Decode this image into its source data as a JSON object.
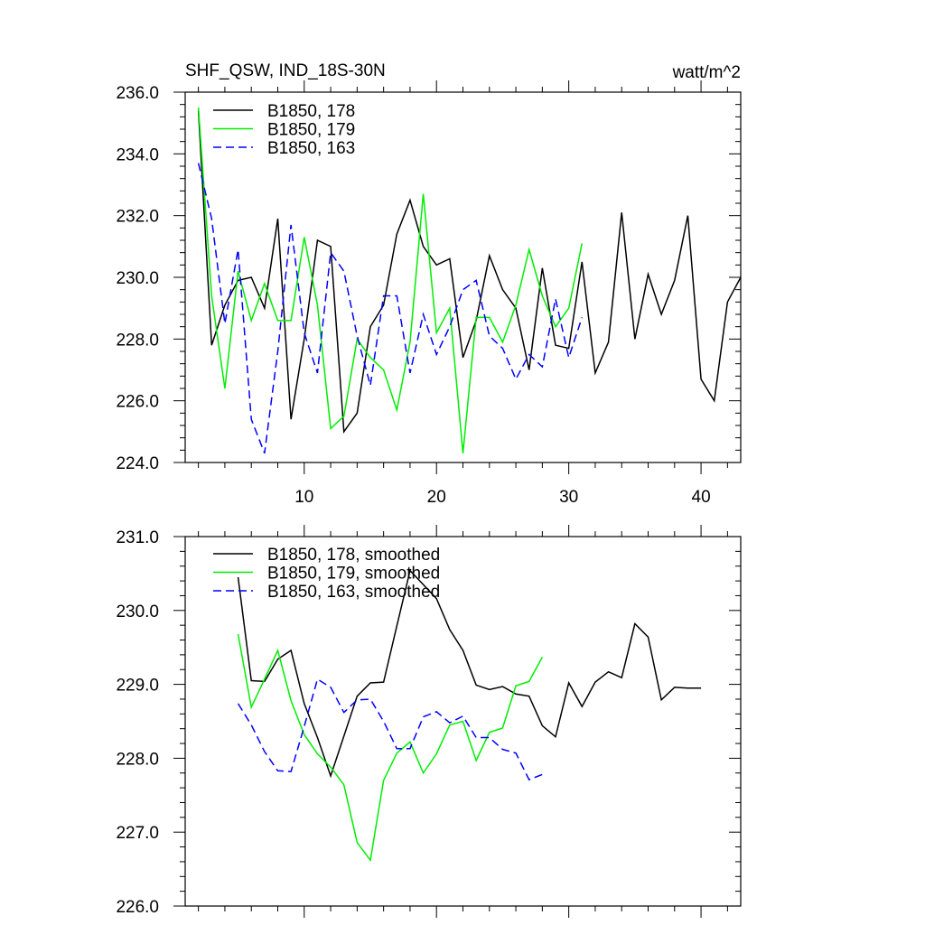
{
  "header": {
    "title": "SHF_QSW, IND_18S-30N",
    "units": "watt/m^2"
  },
  "colors": {
    "series_178": "#000000",
    "series_179": "#00ee00",
    "series_163": "#0000ff",
    "axis": "#000000",
    "background": "#ffffff"
  },
  "chart_data": [
    {
      "type": "line",
      "title": "SHF_QSW, IND_18S-30N",
      "units": "watt/m^2",
      "xlabel": "",
      "ylabel": "",
      "xlim": [
        1,
        43
      ],
      "ylim": [
        224.0,
        236.0
      ],
      "xticks": [
        10,
        20,
        30,
        40
      ],
      "xtick_labels": [
        "10",
        "20",
        "30",
        "40"
      ],
      "yticks": [
        224,
        226,
        228,
        230,
        232,
        234,
        236
      ],
      "ytick_labels": [
        "224.0",
        "226.0",
        "228.0",
        "230.0",
        "232.0",
        "234.0",
        "236.0"
      ],
      "legend_position": "top-left",
      "series": [
        {
          "name": "B1850, 178",
          "color": "#000000",
          "dash": "solid",
          "x": [
            2,
            3,
            4,
            5,
            6,
            7,
            8,
            9,
            10,
            11,
            12,
            13,
            14,
            15,
            16,
            17,
            18,
            19,
            20,
            21,
            22,
            23,
            24,
            25,
            26,
            27,
            28,
            29,
            30,
            31,
            32,
            33,
            34,
            35,
            36,
            37,
            38,
            39,
            40,
            41,
            42,
            43
          ],
          "values": [
            235.4,
            227.8,
            229.1,
            229.9,
            230.0,
            229.0,
            231.9,
            225.4,
            228.0,
            231.2,
            231.0,
            225.0,
            225.6,
            228.4,
            229.1,
            231.4,
            232.5,
            231.0,
            230.4,
            230.6,
            227.4,
            228.6,
            230.7,
            229.6,
            229.0,
            227.0,
            230.3,
            227.8,
            227.7,
            230.5,
            226.9,
            227.9,
            232.1,
            228.0,
            230.1,
            228.8,
            229.9,
            232.0,
            226.7,
            226.0,
            229.2,
            230.0
          ]
        },
        {
          "name": "B1850, 179",
          "color": "#00ee00",
          "dash": "solid",
          "x": [
            2,
            3,
            4,
            5,
            6,
            7,
            8,
            9,
            10,
            11,
            12,
            13,
            14,
            15,
            16,
            17,
            18,
            19,
            20,
            21,
            22,
            23,
            24,
            25,
            26,
            27,
            28,
            29,
            30,
            31
          ],
          "values": [
            235.5,
            229.4,
            226.4,
            230.2,
            228.6,
            229.8,
            228.6,
            228.6,
            231.3,
            229.1,
            225.1,
            225.5,
            228.0,
            227.4,
            227.0,
            225.7,
            227.9,
            232.7,
            228.2,
            229.0,
            224.3,
            228.7,
            228.7,
            227.9,
            229.1,
            230.9,
            229.4,
            228.4,
            229.0,
            231.1
          ]
        },
        {
          "name": "B1850, 163",
          "color": "#0000ff",
          "dash": "dashed",
          "x": [
            2,
            3,
            4,
            5,
            6,
            7,
            8,
            9,
            10,
            11,
            12,
            13,
            14,
            15,
            16,
            17,
            18,
            19,
            20,
            21,
            22,
            23,
            24,
            25,
            26,
            27,
            28,
            29,
            30,
            31
          ],
          "values": [
            233.7,
            231.9,
            228.5,
            230.9,
            225.4,
            224.3,
            227.6,
            231.7,
            228.2,
            226.9,
            230.8,
            230.2,
            228.1,
            226.5,
            229.4,
            229.4,
            226.9,
            228.8,
            227.5,
            228.4,
            229.6,
            229.9,
            228.1,
            227.7,
            226.7,
            227.5,
            227.1,
            229.3,
            227.4,
            228.7
          ]
        }
      ]
    },
    {
      "type": "line",
      "title": "",
      "xlabel": "",
      "ylabel": "",
      "xlim": [
        1,
        43
      ],
      "ylim": [
        226.0,
        231.0
      ],
      "xticks": [
        10,
        20,
        30,
        40
      ],
      "xtick_labels": [],
      "yticks": [
        226,
        227,
        228,
        229,
        230,
        231
      ],
      "ytick_labels": [
        "226.0",
        "227.0",
        "228.0",
        "229.0",
        "230.0",
        "231.0"
      ],
      "legend_position": "top-left",
      "series": [
        {
          "name": "B1850, 178, smoothed",
          "color": "#000000",
          "dash": "solid",
          "x": [
            5,
            6,
            7,
            8,
            9,
            10,
            11,
            12,
            13,
            14,
            15,
            16,
            17,
            18,
            19,
            20,
            21,
            22,
            23,
            24,
            25,
            26,
            27,
            28,
            29,
            30,
            31,
            32,
            33,
            34,
            35,
            36,
            37,
            38,
            39,
            40
          ],
          "values": [
            230.45,
            229.05,
            229.04,
            229.34,
            229.46,
            228.74,
            228.28,
            227.76,
            228.3,
            228.84,
            229.02,
            229.03,
            229.79,
            230.54,
            230.35,
            230.16,
            229.74,
            229.46,
            228.99,
            228.93,
            228.97,
            228.87,
            228.84,
            228.44,
            228.29,
            229.02,
            228.7,
            229.03,
            229.17,
            229.09,
            229.82,
            229.64,
            228.79,
            228.96,
            228.95,
            228.95
          ]
        },
        {
          "name": "B1850, 179, smoothed",
          "color": "#00ee00",
          "dash": "solid",
          "x": [
            5,
            6,
            7,
            8,
            9,
            10,
            11,
            12,
            13,
            14,
            15,
            16,
            17,
            18,
            19,
            20,
            21,
            22,
            23,
            24,
            25,
            26,
            27,
            28
          ],
          "values": [
            229.68,
            228.69,
            229.07,
            229.46,
            228.78,
            228.32,
            228.06,
            227.88,
            227.64,
            226.86,
            226.62,
            227.7,
            228.07,
            228.22,
            227.8,
            228.06,
            228.45,
            228.5,
            227.97,
            228.35,
            228.41,
            228.98,
            229.04,
            229.37
          ]
        },
        {
          "name": "B1850, 163, smoothed",
          "color": "#0000ff",
          "dash": "dashed",
          "x": [
            5,
            6,
            7,
            8,
            9,
            10,
            11,
            12,
            13,
            14,
            15,
            16,
            17,
            18,
            19,
            20,
            21,
            22,
            23,
            24,
            25,
            26,
            27,
            28
          ],
          "values": [
            228.74,
            228.45,
            228.09,
            227.83,
            227.82,
            228.43,
            229.07,
            228.96,
            228.62,
            228.79,
            228.8,
            228.5,
            228.13,
            228.13,
            228.56,
            228.63,
            228.48,
            228.57,
            228.28,
            228.28,
            228.12,
            228.07,
            227.71,
            227.78
          ]
        }
      ]
    }
  ]
}
